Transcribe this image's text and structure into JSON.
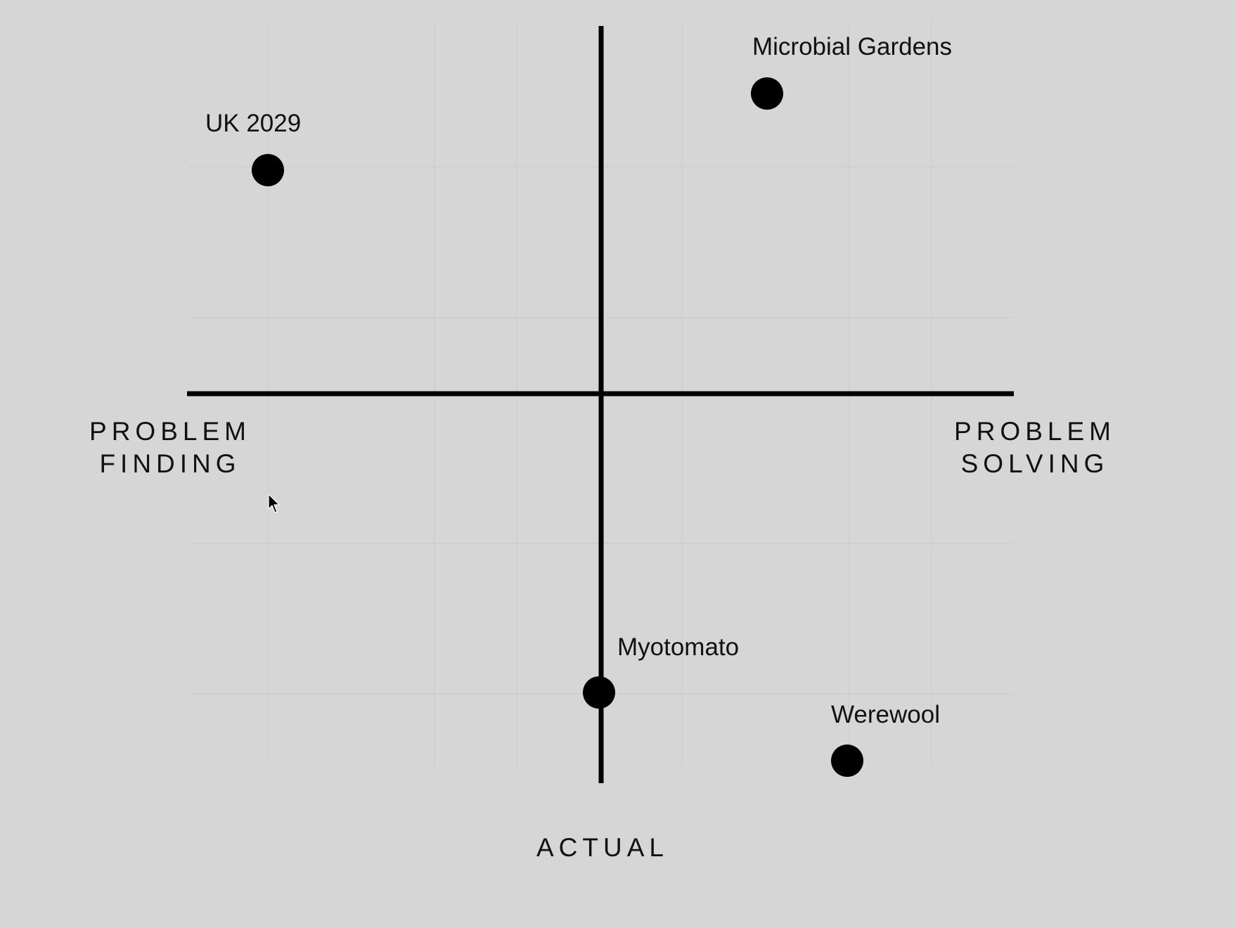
{
  "diagram": {
    "axis_labels": {
      "left_line1": "PROBLEM",
      "left_line2": "FINDING",
      "right_line1": "PROBLEM",
      "right_line2": "SOLVING",
      "bottom": "ACTUAL"
    },
    "points": [
      {
        "id": "uk-2029",
        "label": "UK 2029"
      },
      {
        "id": "microbial-gardens",
        "label": "Microbial Gardens"
      },
      {
        "id": "myotomato",
        "label": "Myotomato"
      },
      {
        "id": "werewool",
        "label": "Werewool"
      }
    ],
    "colors": {
      "background": "#d6d6d6",
      "ink": "#000000",
      "grid": "#cbcbcb"
    },
    "icons": {
      "pointer": "mouse-pointer-icon"
    }
  }
}
